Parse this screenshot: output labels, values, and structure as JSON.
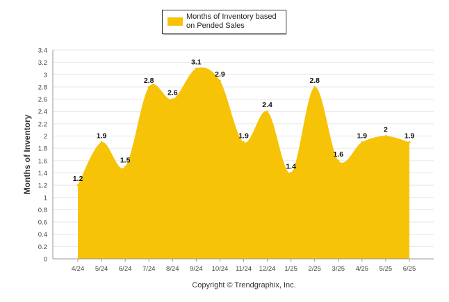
{
  "chart_data": {
    "type": "area",
    "categories": [
      "4/24",
      "5/24",
      "6/24",
      "7/24",
      "8/24",
      "9/24",
      "10/24",
      "11/24",
      "12/24",
      "1/25",
      "2/25",
      "3/25",
      "4/25",
      "5/25",
      "6/25"
    ],
    "series": [
      {
        "name": "Months of Inventory based on Pended Sales",
        "values": [
          1.2,
          1.9,
          1.5,
          2.8,
          2.6,
          3.1,
          2.9,
          1.9,
          2.4,
          1.4,
          2.8,
          1.6,
          1.9,
          2,
          1.9
        ],
        "labels": [
          "1.2",
          "1.9",
          "1.5",
          "2.8",
          "2.6",
          "3.1",
          "2.9",
          "1.9",
          "2.4",
          "1.4",
          "2.8",
          "1.6",
          "1.9",
          "2",
          "1.9"
        ]
      }
    ],
    "ylabel": "Months of Inventory",
    "ylim": [
      0,
      3.4
    ],
    "yticks": [
      "0",
      "0.2",
      "0.4",
      "0.6",
      "0.8",
      "1",
      "1.2",
      "1.4",
      "1.6",
      "1.8",
      "2",
      "2.2",
      "2.4",
      "2.6",
      "2.8",
      "3",
      "3.2",
      "3.4"
    ],
    "grid": true,
    "legend_placement": "top-center",
    "colors": {
      "area": "#F7C307",
      "grid": "#e6e6e6",
      "axis": "#999999"
    }
  },
  "legend": {
    "line1": "Months of Inventory based",
    "line2": "on Pended Sales"
  },
  "footer": {
    "copyright": "Copyright © Trendgraphix, Inc."
  }
}
